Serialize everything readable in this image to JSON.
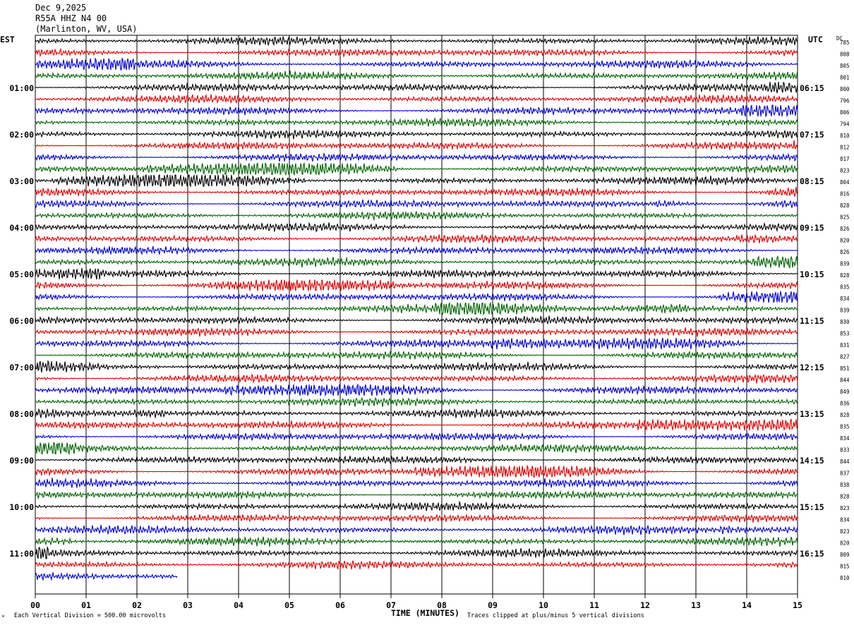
{
  "header": {
    "date": "Dec 9,2025",
    "station": "R55A HHZ N4 00",
    "location": "(Marlinton, WV, USA)"
  },
  "colors": {
    "trace_cycle": [
      "#000000",
      "#e00000",
      "#0000d0",
      "#006400"
    ],
    "grid": "#000000",
    "background": "#ffffff"
  },
  "chart_data": {
    "type": "line",
    "title": "",
    "left_axis_label": "EST",
    "right_axis_label": "UTC",
    "dc_header": "DC",
    "xlabel": "TIME (MINUTES)",
    "x_ticks": [
      "00",
      "01",
      "02",
      "03",
      "04",
      "05",
      "06",
      "07",
      "08",
      "09",
      "10",
      "11",
      "12",
      "13",
      "14",
      "15"
    ],
    "xlim": [
      0,
      15
    ],
    "rows_per_hour": 4,
    "trace_count": 47,
    "last_trace_end_minutes": 2.8,
    "est_labels": [
      "01:00",
      "02:00",
      "03:00",
      "04:00",
      "05:00",
      "06:00",
      "07:00",
      "08:00",
      "09:00",
      "10:00",
      "11:00"
    ],
    "utc_labels": [
      "06:15",
      "07:15",
      "08:15",
      "09:15",
      "10:15",
      "11:15",
      "12:15",
      "13:15",
      "14:15",
      "15:15",
      "16:15"
    ],
    "dc_values": [
      "785",
      "808",
      "805",
      "801",
      "800",
      "796",
      "806",
      "794",
      "810",
      "812",
      "817",
      "823",
      "804",
      "816",
      "828",
      "825",
      "826",
      "820",
      "826",
      "839",
      "828",
      "835",
      "834",
      "839",
      "830",
      "853",
      "831",
      "827",
      "851",
      "844",
      "849",
      "836",
      "828",
      "835",
      "834",
      "833",
      "844",
      "837",
      "838",
      "828",
      "823",
      "834",
      "823",
      "820",
      "809",
      "815",
      "810"
    ],
    "scale_note": "Each Vertical Division = 500.00 microvolts",
    "clip_note": "Traces clipped at plus/minus 5 vertical divisions"
  }
}
